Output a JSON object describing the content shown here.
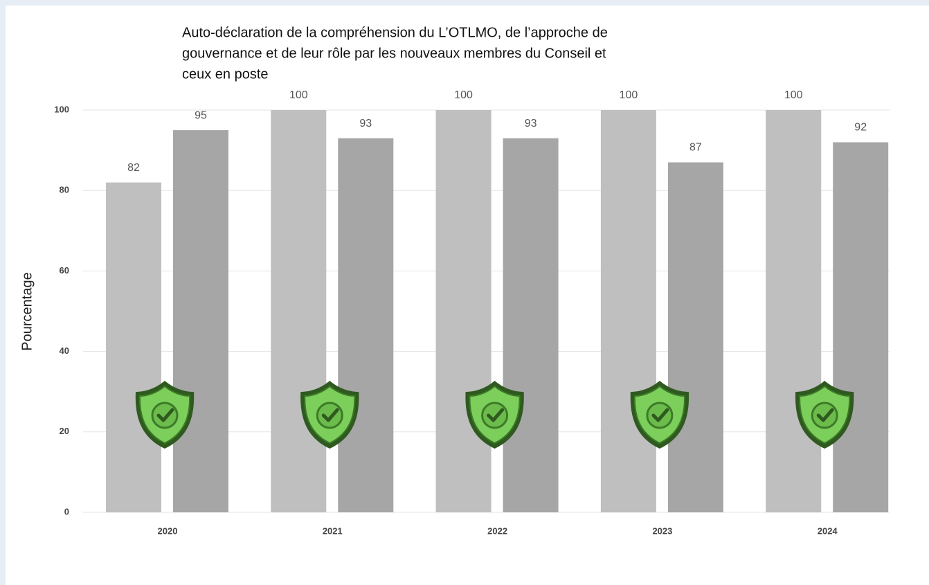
{
  "chart_data": {
    "type": "bar",
    "title_lines": [
      "Auto-déclaration de la compréhension du L’OTLMO, de l’approche de",
      "gouvernance et de leur rôle par les nouveaux membres du Conseil et",
      "ceux en poste"
    ],
    "y_label": "Pourcentage",
    "categories": [
      "2020",
      "2021",
      "2022",
      "2023",
      "2024"
    ],
    "series": [
      {
        "color": "#bfbfbf",
        "values": [
          82,
          100,
          100,
          100,
          100
        ]
      },
      {
        "color": "#a6a6a6",
        "values": [
          95,
          93,
          93,
          87,
          92
        ]
      }
    ],
    "ylim": [
      0,
      100
    ],
    "yticks": [
      0,
      20,
      40,
      60,
      80,
      100
    ],
    "grid": true
  }
}
